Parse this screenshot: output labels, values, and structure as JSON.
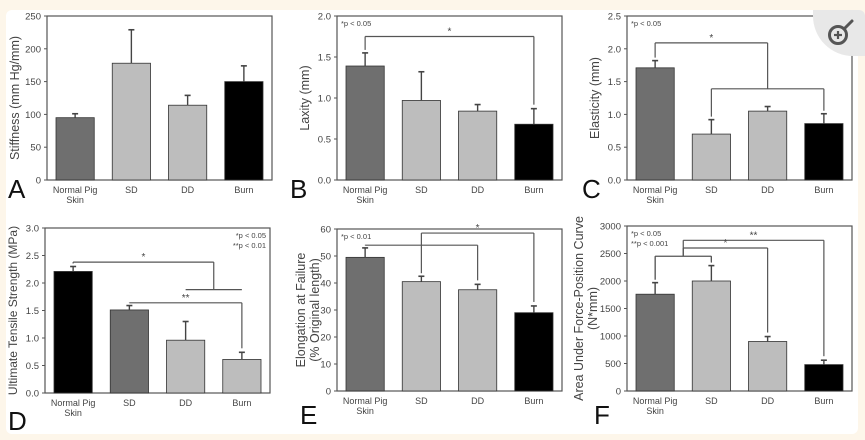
{
  "figure": {
    "zoom_button_icon": "zoom-in-icon",
    "colors": {
      "normal": "#6f6f6f",
      "light": "#bdbdbd",
      "burn": "#000000",
      "axis": "#555555",
      "text": "#444444"
    }
  },
  "chart_data": [
    {
      "panel": "A",
      "type": "bar",
      "ylabel": "Stiffness (mm Hg/mm)",
      "categories": [
        "Normal Pig Skin",
        "SD",
        "DD",
        "Burn"
      ],
      "values": [
        95,
        178,
        114,
        150
      ],
      "errors": [
        6,
        51,
        15,
        24
      ],
      "bar_colors": [
        "normal",
        "light",
        "light",
        "burn"
      ],
      "ylim": [
        0,
        250
      ],
      "yticks": [
        "0",
        "50",
        "100",
        "150",
        "200",
        "250"
      ],
      "ytick_values": [
        0,
        50,
        100,
        150,
        200,
        250
      ],
      "legend": [],
      "brackets": []
    },
    {
      "panel": "B",
      "type": "bar",
      "ylabel": "Laxity (mm)",
      "categories": [
        "Normal Pig Skin",
        "SD",
        "DD",
        "Burn"
      ],
      "values": [
        1.39,
        0.97,
        0.84,
        0.68
      ],
      "errors": [
        0.16,
        0.35,
        0.08,
        0.19
      ],
      "bar_colors": [
        "normal",
        "light",
        "light",
        "burn"
      ],
      "ylim": [
        0,
        2.0
      ],
      "yticks": [
        "0.0",
        "0.5",
        "1.0",
        "1.5",
        "2.0"
      ],
      "ytick_values": [
        0,
        0.5,
        1.0,
        1.5,
        2.0
      ],
      "legend": [
        "*p < 0.05"
      ],
      "legend_position": "top-left",
      "brackets": [
        {
          "from": [
            0
          ],
          "to": [
            3
          ],
          "level": 1.75,
          "label": "*"
        }
      ]
    },
    {
      "panel": "C",
      "type": "bar",
      "ylabel": "Elasticity (mm)",
      "categories": [
        "Normal Pig Skin",
        "SD",
        "DD",
        "Burn"
      ],
      "values": [
        1.71,
        0.7,
        1.05,
        0.86
      ],
      "errors": [
        0.11,
        0.22,
        0.07,
        0.15
      ],
      "bar_colors": [
        "normal",
        "light",
        "light",
        "burn"
      ],
      "ylim": [
        0,
        2.5
      ],
      "yticks": [
        "0.0",
        "0.5",
        "1.0",
        "1.5",
        "2.0",
        "2.5"
      ],
      "ytick_values": [
        0,
        0.5,
        1.0,
        1.5,
        2.0,
        2.5
      ],
      "legend": [
        "*p < 0.05"
      ],
      "legend_position": "top-left",
      "brackets": [
        {
          "from": [
            0
          ],
          "to": [
            1,
            3
          ],
          "level": 2.09,
          "sub_level": 1.39,
          "label": "*"
        }
      ]
    },
    {
      "panel": "D",
      "type": "bar",
      "ylabel": "Ultimate Tensile Strength (MPa)",
      "categories": [
        "Normal Pig Skin",
        "SD",
        "DD",
        "Burn"
      ],
      "values": [
        2.21,
        1.51,
        0.96,
        0.61
      ],
      "errors": [
        0.09,
        0.08,
        0.34,
        0.13
      ],
      "bar_colors": [
        "burn",
        "normal",
        "light",
        "light"
      ],
      "ylim": [
        0,
        3.0
      ],
      "yticks": [
        "0.0",
        "0.5",
        "1.0",
        "1.5",
        "2.0",
        "2.5",
        "3.0"
      ],
      "ytick_values": [
        0,
        0.5,
        1.0,
        1.5,
        2.0,
        2.5,
        3.0
      ],
      "legend": [
        "*p < 0.05",
        "**p < 0.01"
      ],
      "legend_position": "top-right",
      "brackets": [
        {
          "from": [
            0
          ],
          "to": [
            2,
            3
          ],
          "level": 2.38,
          "sub_level": 1.88,
          "label": "*"
        },
        {
          "from": [
            1
          ],
          "to": [
            3
          ],
          "level": 1.64,
          "label": "**"
        }
      ]
    },
    {
      "panel": "E",
      "type": "bar",
      "ylabel": "Elongation at Failure (% Original length)",
      "categories": [
        "Normal Pig Skin",
        "SD",
        "DD",
        "Burn"
      ],
      "values": [
        49.5,
        40.5,
        37.5,
        29
      ],
      "errors": [
        3.5,
        2,
        2,
        2.5
      ],
      "bar_colors": [
        "normal",
        "light",
        "light",
        "burn"
      ],
      "ylim": [
        0,
        60
      ],
      "yticks": [
        "0",
        "10",
        "20",
        "30",
        "40",
        "50",
        "60"
      ],
      "ytick_values": [
        0,
        10,
        20,
        30,
        40,
        50,
        60
      ],
      "legend": [
        "*p < 0.01"
      ],
      "legend_position": "top-left",
      "brackets": [
        {
          "from": [
            0
          ],
          "to": [
            2
          ],
          "level": 54,
          "label": ""
        },
        {
          "from": [
            1
          ],
          "to": [
            3
          ],
          "level": 58.5,
          "label": "*"
        }
      ]
    },
    {
      "panel": "F",
      "type": "bar",
      "ylabel": "Area Under Force-Position Curve (N*mm)",
      "categories": [
        "Normal Pig Skin",
        "SD",
        "DD",
        "Burn"
      ],
      "values": [
        1760,
        2000,
        900,
        480
      ],
      "errors": [
        210,
        280,
        90,
        80
      ],
      "bar_colors": [
        "normal",
        "light",
        "light",
        "burn"
      ],
      "ylim": [
        0,
        3000
      ],
      "yticks": [
        "0",
        "500",
        "1000",
        "1500",
        "2000",
        "2500",
        "3000"
      ],
      "ytick_values": [
        0,
        500,
        1000,
        1500,
        2000,
        2500,
        3000
      ],
      "legend": [
        "*p < 0.05",
        "**p < 0.001"
      ],
      "legend_position": "top-left",
      "brackets": [
        {
          "from": [
            0
          ],
          "to": [
            1
          ],
          "level": 2450,
          "label": "",
          "group": true
        },
        {
          "from": [
            0,
            1
          ],
          "to": [
            2
          ],
          "level": 2600,
          "label": "*"
        },
        {
          "from": [
            0,
            1
          ],
          "to": [
            3
          ],
          "level": 2740,
          "label": "**"
        }
      ]
    }
  ]
}
